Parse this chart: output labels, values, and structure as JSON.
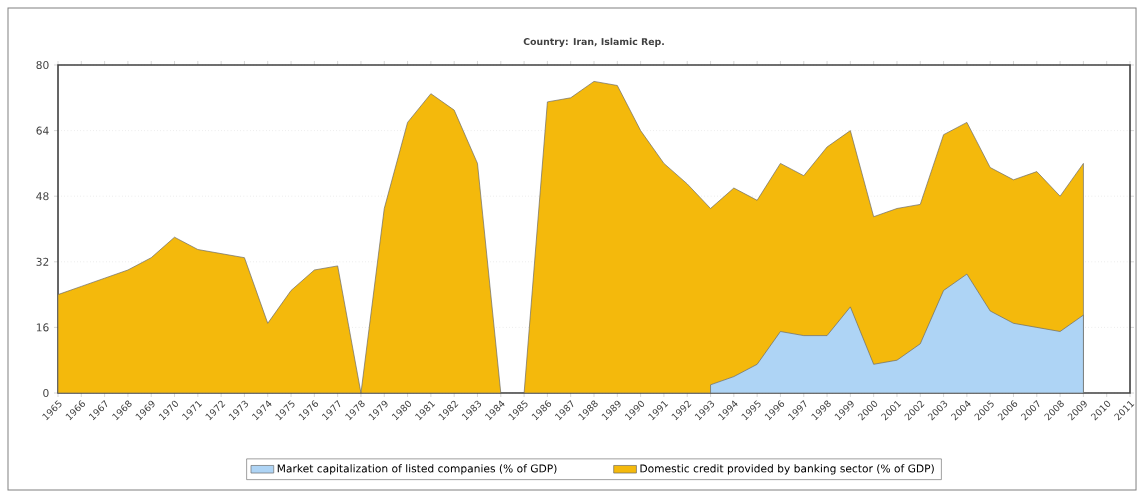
{
  "chart_data": {
    "type": "area",
    "title": "Country: Iran, Islamic Rep.",
    "categories": [
      "1965",
      "1966",
      "1967",
      "1968",
      "1969",
      "1970",
      "1971",
      "1972",
      "1973",
      "1974",
      "1975",
      "1976",
      "1977",
      "1978",
      "1979",
      "1980",
      "1981",
      "1982",
      "1983",
      "1984",
      "1985",
      "1986",
      "1987",
      "1988",
      "1989",
      "1990",
      "1991",
      "1992",
      "1993",
      "1994",
      "1995",
      "1996",
      "1997",
      "1998",
      "1999",
      "2000",
      "2001",
      "2002",
      "2003",
      "2004",
      "2005",
      "2006",
      "2007",
      "2008",
      "2009",
      "2010",
      "2011"
    ],
    "series": [
      {
        "name": "Market capitalization of listed companies (% of GDP)",
        "color": "#aed4f5",
        "values": [
          null,
          null,
          null,
          null,
          null,
          null,
          null,
          null,
          null,
          null,
          null,
          null,
          null,
          null,
          null,
          null,
          null,
          null,
          null,
          null,
          null,
          null,
          null,
          null,
          null,
          null,
          null,
          null,
          2,
          4,
          7,
          15,
          14,
          14,
          21,
          7,
          8,
          12,
          25,
          29,
          20,
          17,
          16,
          15,
          19,
          null,
          null
        ]
      },
      {
        "name": "Domestic credit provided by banking sector (% of GDP)",
        "color": "#f4b90c",
        "values": [
          24,
          26,
          28,
          30,
          33,
          38,
          35,
          34,
          33,
          17,
          25,
          30,
          31,
          0,
          45,
          66,
          73,
          69,
          56,
          0,
          0,
          71,
          72,
          76,
          75,
          64,
          56,
          51,
          45,
          50,
          47,
          56,
          53,
          60,
          64,
          43,
          45,
          46,
          63,
          66,
          55,
          52,
          54,
          48,
          56,
          null,
          null
        ]
      }
    ],
    "ylim": [
      0,
      80
    ],
    "yticks": [
      0,
      16,
      32,
      48,
      64,
      80
    ],
    "grid": "y",
    "legend": "bottom"
  }
}
